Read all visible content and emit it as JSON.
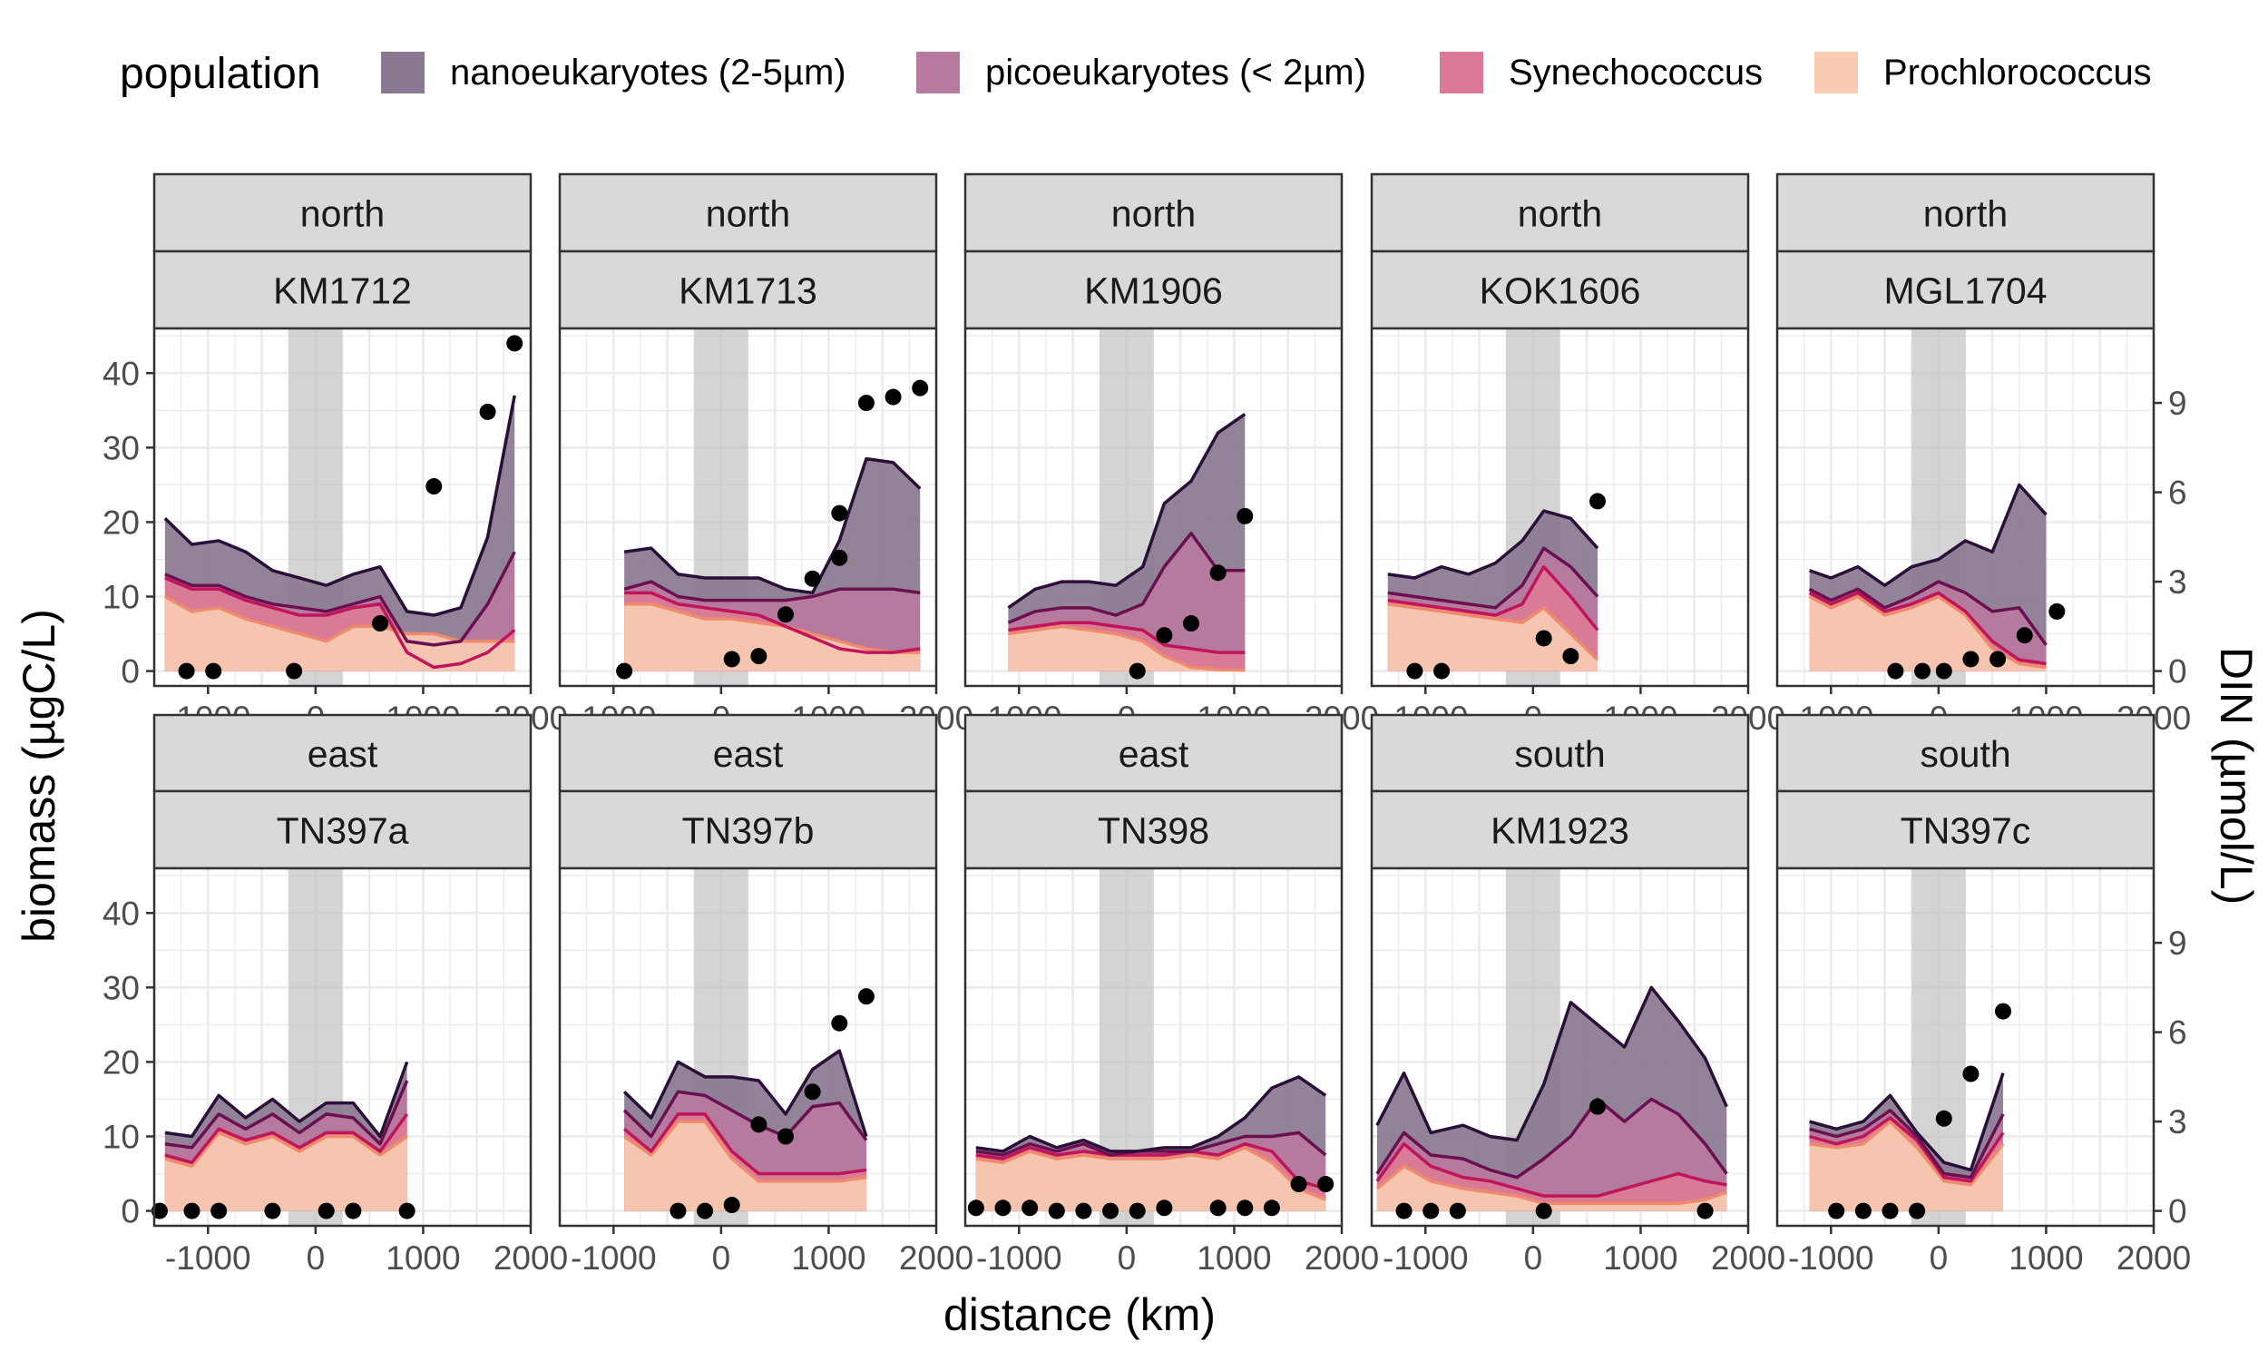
{
  "chart_data": {
    "type": "area",
    "xlabel": "distance (km)",
    "ylabel": "biomass (µgC/L)",
    "y2label": "DIN (µmol/L)",
    "xlim": [
      -1500,
      2000
    ],
    "ylim": [
      -2,
      46
    ],
    "y2lim": [
      -0.5,
      11.5
    ],
    "x_ticks": [
      -1000,
      0,
      1000,
      2000
    ],
    "x_tick_labels": [
      "-1000",
      "0",
      "1000",
      "2000"
    ],
    "y_ticks": [
      0,
      10,
      20,
      30,
      40
    ],
    "y_tick_labels": [
      "0",
      "10",
      "20",
      "30",
      "40"
    ],
    "y2_ticks": [
      0,
      3,
      6,
      9
    ],
    "y2_tick_labels": [
      "0",
      "3",
      "6",
      "9"
    ],
    "shaded_band": [
      -250,
      250
    ],
    "grid": true,
    "legend": {
      "title": "population",
      "position": "top",
      "entries": [
        {
          "key": "nano",
          "label": "nanoeukaryotes (2-5µm)",
          "fill": "#8a7890",
          "line": "#2a1038"
        },
        {
          "key": "pico",
          "label": "picoeukaryotes (< 2µm)",
          "fill": "#b87a9e",
          "line": "#6a1050"
        },
        {
          "key": "syn",
          "label": "Synechococcus",
          "fill": "#dc7a96",
          "line": "#c0155a"
        },
        {
          "key": "pro",
          "label": "Prochlorococcus",
          "fill": "#f8cbb2",
          "line": "#f08a6c"
        }
      ]
    },
    "panels": [
      {
        "region": "north",
        "cruise": "KM1712",
        "x": [
          -1400,
          -1150,
          -900,
          -650,
          -400,
          -150,
          100,
          350,
          600,
          850,
          1100,
          1350,
          1600,
          1850
        ],
        "pro": [
          10,
          8,
          8.5,
          7,
          6,
          5,
          4,
          6,
          6,
          5,
          5,
          4,
          4,
          4
        ],
        "syn": [
          12.5,
          11,
          11,
          9.5,
          8.5,
          7.5,
          7.5,
          8.5,
          9,
          2.5,
          0.5,
          1,
          2.5,
          5.5
        ],
        "pico": [
          13,
          11.5,
          11.5,
          10,
          9,
          8.5,
          8,
          9,
          10,
          4,
          3.5,
          4,
          9,
          16
        ],
        "nano": [
          20.5,
          17,
          17.5,
          16,
          13.5,
          12.5,
          11.5,
          13,
          14,
          8,
          7.5,
          8.5,
          18,
          37
        ],
        "din": [
          [
            -1200,
            0
          ],
          [
            -950,
            0
          ],
          [
            -200,
            0
          ],
          [
            600,
            1.6
          ],
          [
            1100,
            6.2
          ],
          [
            1600,
            8.7
          ],
          [
            1850,
            11
          ]
        ]
      },
      {
        "region": "north",
        "cruise": "KM1713",
        "x": [
          -900,
          -650,
          -400,
          -150,
          100,
          350,
          600,
          850,
          1100,
          1350,
          1600,
          1850
        ],
        "pro": [
          9,
          9,
          8,
          7,
          7,
          6.5,
          6,
          5,
          4,
          3,
          2.5,
          2.5
        ],
        "syn": [
          10.5,
          10.5,
          9,
          8.5,
          8,
          7.5,
          6,
          4.5,
          3,
          2.5,
          2.5,
          3
        ],
        "pico": [
          11,
          12,
          10,
          9.5,
          9.5,
          9.5,
          9.5,
          10,
          11,
          11,
          11,
          10.5
        ],
        "nano": [
          16,
          16.5,
          13,
          12.5,
          12.5,
          12.5,
          11,
          10.5,
          17.5,
          28.5,
          28,
          24.5
        ],
        "din": [
          [
            -900,
            0
          ],
          [
            100,
            0.4
          ],
          [
            350,
            0.5
          ],
          [
            600,
            1.9
          ],
          [
            850,
            3.1
          ],
          [
            1100,
            3.8
          ],
          [
            1100,
            5.3
          ],
          [
            1350,
            9
          ],
          [
            1600,
            9.2
          ],
          [
            1850,
            9.5
          ]
        ]
      },
      {
        "region": "north",
        "cruise": "KM1906",
        "x": [
          -1100,
          -850,
          -600,
          -350,
          -100,
          150,
          350,
          600,
          850,
          1100
        ],
        "pro": [
          5,
          5.5,
          6,
          5.5,
          5,
          4,
          2,
          0.5,
          0.2,
          0.1
        ],
        "syn": [
          5.5,
          6,
          6.5,
          6.5,
          6,
          5.5,
          3.5,
          3,
          2.5,
          2.5
        ],
        "pico": [
          6.5,
          8,
          8.5,
          8.5,
          7.5,
          9,
          14,
          18.5,
          13.5,
          13.5
        ],
        "nano": [
          8.5,
          11,
          12,
          12,
          11.5,
          14,
          22.5,
          25.5,
          32,
          34.5
        ],
        "din": [
          [
            100,
            0
          ],
          [
            350,
            1.2
          ],
          [
            600,
            1.6
          ],
          [
            850,
            3.3
          ],
          [
            1100,
            5.2
          ]
        ]
      },
      {
        "region": "north",
        "cruise": "KOK1606",
        "x": [
          -1350,
          -1100,
          -850,
          -600,
          -350,
          -100,
          100,
          350,
          600
        ],
        "pro": [
          9,
          8.5,
          8,
          7.5,
          7,
          6.5,
          8.5,
          5,
          1.5
        ],
        "syn": [
          9.5,
          9,
          8.5,
          8,
          7.5,
          9,
          14,
          10,
          5.5
        ],
        "pico": [
          10.5,
          10,
          9.5,
          9,
          8.5,
          11.5,
          16.5,
          14,
          10
        ],
        "nano": [
          13,
          12.5,
          14,
          13,
          14.5,
          17.5,
          21.5,
          20.5,
          16.5
        ],
        "din": [
          [
            -1100,
            0
          ],
          [
            -850,
            0
          ],
          [
            100,
            1.1
          ],
          [
            350,
            0.5
          ],
          [
            600,
            5.7
          ]
        ]
      },
      {
        "region": "north",
        "cruise": "MGL1704",
        "x": [
          -1200,
          -1000,
          -750,
          -500,
          -250,
          0,
          250,
          500,
          750,
          1000
        ],
        "pro": [
          10,
          8.5,
          10,
          7.5,
          8.5,
          10,
          7.5,
          3,
          1,
          0.5
        ],
        "syn": [
          10.5,
          9,
          10.5,
          8,
          9,
          10.5,
          8,
          4,
          1.5,
          1
        ],
        "pico": [
          11,
          9.5,
          11,
          8.5,
          10,
          12,
          10.5,
          8,
          8.5,
          3.5
        ],
        "nano": [
          13.5,
          12.5,
          14,
          11.5,
          14,
          15,
          17.5,
          16,
          25,
          21
        ],
        "din": [
          [
            -400,
            0
          ],
          [
            -150,
            0
          ],
          [
            50,
            0
          ],
          [
            300,
            0.4
          ],
          [
            550,
            0.4
          ],
          [
            800,
            1.2
          ],
          [
            1100,
            2
          ]
        ]
      },
      {
        "region": "east",
        "cruise": "TN397a",
        "x": [
          -1400,
          -1150,
          -900,
          -650,
          -400,
          -150,
          100,
          350,
          600,
          850
        ],
        "pro": [
          7,
          6,
          10.5,
          9,
          10,
          8,
          10,
          10,
          7.5,
          10
        ],
        "syn": [
          7.5,
          6.5,
          11,
          9.5,
          10.5,
          8.5,
          10.5,
          10.5,
          8,
          13
        ],
        "pico": [
          9,
          8.5,
          13,
          11,
          13,
          10.5,
          13,
          12.5,
          9,
          17.5
        ],
        "nano": [
          10.5,
          10,
          15.5,
          12.5,
          15,
          12,
          14.5,
          14.5,
          10,
          20
        ],
        "din": [
          [
            -1450,
            0
          ],
          [
            -1150,
            0
          ],
          [
            -900,
            0
          ],
          [
            -400,
            0
          ],
          [
            100,
            0
          ],
          [
            350,
            0
          ],
          [
            850,
            0
          ]
        ]
      },
      {
        "region": "east",
        "cruise": "TN397b",
        "x": [
          -900,
          -650,
          -400,
          -150,
          100,
          350,
          600,
          850,
          1100,
          1350
        ],
        "pro": [
          10,
          7.5,
          12,
          12,
          7,
          4,
          4,
          4,
          4,
          4.5
        ],
        "syn": [
          11,
          8,
          13,
          13,
          8,
          5,
          5,
          5,
          5,
          5.5
        ],
        "pico": [
          13.5,
          10,
          16,
          15.5,
          13.5,
          11.5,
          10,
          14,
          14.5,
          9.5
        ],
        "nano": [
          16,
          12.5,
          20,
          18,
          18,
          17.5,
          13,
          19,
          21.5,
          10
        ],
        "din": [
          [
            -400,
            0
          ],
          [
            -150,
            0
          ],
          [
            100,
            0.2
          ],
          [
            350,
            2.9
          ],
          [
            600,
            2.5
          ],
          [
            850,
            4
          ],
          [
            1100,
            6.3
          ],
          [
            1350,
            7.2
          ]
        ]
      },
      {
        "region": "east",
        "cruise": "TN398",
        "x": [
          -1400,
          -1150,
          -900,
          -650,
          -400,
          -150,
          100,
          350,
          600,
          850,
          1100,
          1350,
          1600,
          1850
        ],
        "pro": [
          7,
          6.5,
          8,
          7,
          7.5,
          7,
          7,
          7,
          7.5,
          7,
          8.5,
          6.5,
          3,
          1.5
        ],
        "syn": [
          7.5,
          7,
          8.5,
          7.5,
          8,
          7.5,
          7.5,
          7.5,
          8,
          7.5,
          9,
          8,
          4,
          3
        ],
        "pico": [
          8,
          7.5,
          9,
          8,
          9,
          7.5,
          8,
          8,
          8,
          9,
          10,
          10,
          10.5,
          7.5
        ],
        "nano": [
          8.5,
          8,
          10,
          8.5,
          9.5,
          8,
          8,
          8.5,
          8.5,
          10,
          12.5,
          16.5,
          18,
          15.5
        ],
        "din": [
          [
            -1400,
            0.1
          ],
          [
            -1150,
            0.1
          ],
          [
            -900,
            0.1
          ],
          [
            -650,
            0
          ],
          [
            -400,
            0
          ],
          [
            -150,
            0
          ],
          [
            100,
            0
          ],
          [
            350,
            0.1
          ],
          [
            850,
            0.1
          ],
          [
            1100,
            0.1
          ],
          [
            1350,
            0.1
          ],
          [
            1600,
            0.9
          ],
          [
            1850,
            0.9
          ]
        ]
      },
      {
        "region": "south",
        "cruise": "KM1923",
        "x": [
          -1450,
          -1200,
          -950,
          -650,
          -400,
          -150,
          100,
          350,
          600,
          850,
          1100,
          1350,
          1600,
          1800
        ],
        "pro": [
          3,
          6,
          4,
          3,
          2.5,
          2,
          1,
          1,
          1,
          1,
          1,
          1,
          1.5,
          2.5
        ],
        "syn": [
          4,
          9,
          6,
          4.5,
          4,
          3,
          2,
          2,
          2,
          3,
          4,
          5,
          4,
          3.5
        ],
        "pico": [
          5,
          10.5,
          7.5,
          7,
          5.5,
          4.5,
          7,
          10,
          15,
          12,
          15,
          13,
          9,
          5
        ],
        "nano": [
          11.5,
          18.5,
          10.5,
          11.5,
          10,
          9.5,
          17,
          28,
          25,
          22,
          30,
          25.5,
          20.5,
          14
        ],
        "din": [
          [
            -1200,
            0
          ],
          [
            -950,
            0
          ],
          [
            -700,
            0
          ],
          [
            100,
            0
          ],
          [
            600,
            3.5
          ],
          [
            1600,
            0
          ]
        ]
      },
      {
        "region": "south",
        "cruise": "TN397c",
        "x": [
          -1200,
          -950,
          -700,
          -450,
          -200,
          50,
          300,
          600
        ],
        "pro": [
          9,
          8.5,
          9,
          12,
          8.5,
          4,
          3.5,
          9
        ],
        "syn": [
          10,
          9,
          10,
          12.5,
          9.5,
          4.5,
          4,
          10.5
        ],
        "pico": [
          11,
          10,
          11,
          13.5,
          10,
          5,
          4.5,
          13
        ],
        "nano": [
          12,
          11,
          12,
          15.5,
          10.5,
          6.5,
          5.5,
          18.5
        ],
        "din": [
          [
            -950,
            0
          ],
          [
            -700,
            0
          ],
          [
            -450,
            0
          ],
          [
            -200,
            0
          ],
          [
            50,
            3.1
          ],
          [
            300,
            4.6
          ],
          [
            600,
            6.7
          ]
        ]
      }
    ]
  }
}
